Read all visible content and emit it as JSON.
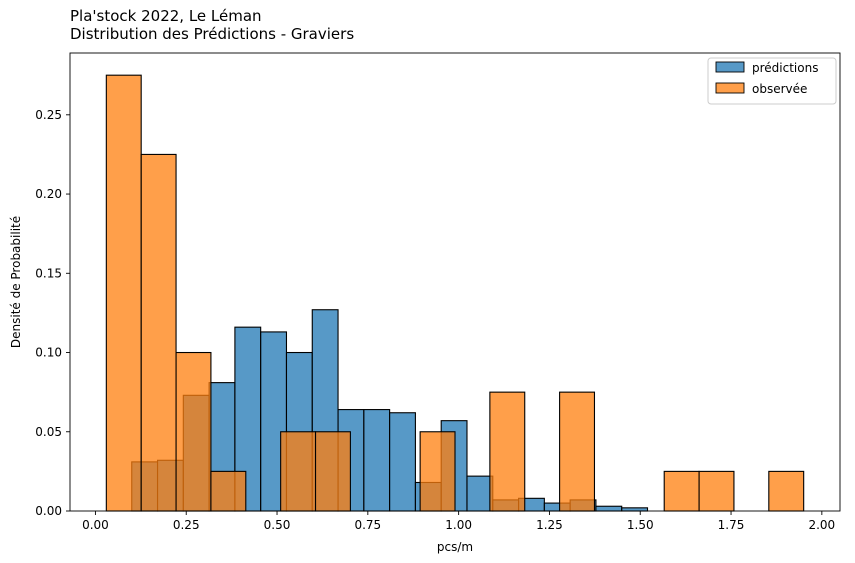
{
  "chart_data": {
    "type": "bar",
    "title": "Pla'stock 2022, Le Léman",
    "subtitle": "Distribution des Prédictions - Graviers",
    "xlabel": "pcs/m",
    "ylabel": "Densité de Probabilité",
    "xlim": [
      -0.07,
      2.05
    ],
    "ylim": [
      0,
      0.289
    ],
    "xticks": [
      0.0,
      0.25,
      0.5,
      0.75,
      1.0,
      1.25,
      1.5,
      1.75,
      2.0
    ],
    "xtick_labels": [
      "0.00",
      "0.25",
      "0.50",
      "0.75",
      "1.00",
      "1.25",
      "1.50",
      "1.75",
      "2.00"
    ],
    "yticks": [
      0.0,
      0.05,
      0.1,
      0.15,
      0.2,
      0.25
    ],
    "ytick_labels": [
      "0.00",
      "0.05",
      "0.10",
      "0.15",
      "0.20",
      "0.25"
    ],
    "grid": false,
    "legend_position": "top-right",
    "series": [
      {
        "name": "prédictions",
        "color": "#1f77b4",
        "bin_edges": [
          0.1,
          0.171,
          0.242,
          0.313,
          0.384,
          0.455,
          0.526,
          0.597,
          0.668,
          0.739,
          0.81,
          0.881,
          0.952,
          1.023,
          1.094,
          1.165,
          1.236,
          1.307,
          1.378,
          1.449,
          1.52
        ],
        "values": [
          0.031,
          0.032,
          0.073,
          0.081,
          0.116,
          0.113,
          0.1,
          0.127,
          0.064,
          0.064,
          0.062,
          0.018,
          0.057,
          0.022,
          0.007,
          0.008,
          0.005,
          0.007,
          0.003,
          0.002
        ]
      },
      {
        "name": "observée",
        "color": "#ff7f0e",
        "bin_edges": [
          0.03,
          0.126,
          0.222,
          0.318,
          0.414,
          0.51,
          0.606,
          0.702,
          0.798,
          0.894,
          0.99,
          1.086,
          1.182,
          1.278,
          1.374,
          1.47,
          1.566,
          1.662,
          1.758,
          1.854,
          1.95
        ],
        "values": [
          0.275,
          0.225,
          0.1,
          0.025,
          0,
          0.05,
          0.05,
          0,
          0,
          0.05,
          0,
          0.075,
          0,
          0.075,
          0,
          0,
          0.025,
          0.025,
          0,
          0.025
        ]
      }
    ]
  }
}
